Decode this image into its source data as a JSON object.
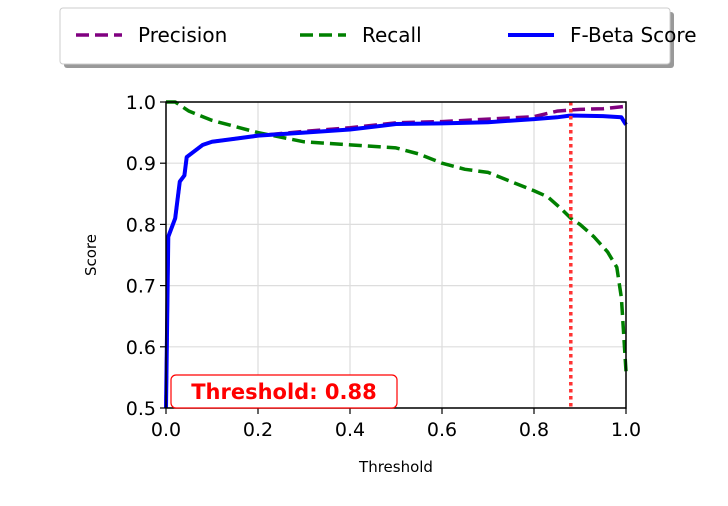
{
  "chart_data": {
    "type": "line",
    "title": "",
    "xlabel": "Threshold",
    "ylabel": "Score",
    "xlim": [
      0.0,
      1.0
    ],
    "ylim": [
      0.5,
      1.0
    ],
    "xticks": [
      "0.0",
      "0.2",
      "0.4",
      "0.6",
      "0.8",
      "1.0"
    ],
    "yticks": [
      "0.5",
      "0.6",
      "0.7",
      "0.8",
      "0.9",
      "1.0"
    ],
    "grid": true,
    "legend_position": "top-center",
    "annotation": "Threshold: 0.88",
    "threshold": 0.88,
    "series": [
      {
        "name": "Precision",
        "color": "#800080",
        "style": "dashed",
        "x": [
          0.0,
          0.005,
          0.02,
          0.03,
          0.04,
          0.045,
          0.08,
          0.1,
          0.15,
          0.2,
          0.3,
          0.4,
          0.5,
          0.6,
          0.7,
          0.8,
          0.85,
          0.88,
          0.9,
          0.95,
          1.0
        ],
        "y": [
          0.5,
          0.78,
          0.81,
          0.87,
          0.88,
          0.91,
          0.93,
          0.935,
          0.94,
          0.945,
          0.952,
          0.958,
          0.966,
          0.968,
          0.972,
          0.976,
          0.985,
          0.987,
          0.988,
          0.989,
          0.993
        ]
      },
      {
        "name": "Recall",
        "color": "#008000",
        "style": "dashed",
        "x": [
          0.0,
          0.02,
          0.05,
          0.1,
          0.2,
          0.3,
          0.4,
          0.5,
          0.55,
          0.6,
          0.65,
          0.7,
          0.75,
          0.8,
          0.83,
          0.86,
          0.88,
          0.9,
          0.93,
          0.96,
          0.98,
          0.99,
          1.0
        ],
        "y": [
          1.0,
          1.0,
          0.985,
          0.97,
          0.95,
          0.935,
          0.93,
          0.925,
          0.915,
          0.9,
          0.89,
          0.885,
          0.87,
          0.855,
          0.845,
          0.825,
          0.81,
          0.8,
          0.78,
          0.755,
          0.73,
          0.68,
          0.56
        ]
      },
      {
        "name": "F-Beta Score",
        "color": "#0000ff",
        "style": "solid",
        "x": [
          0.0,
          0.005,
          0.02,
          0.03,
          0.04,
          0.045,
          0.08,
          0.1,
          0.15,
          0.2,
          0.3,
          0.4,
          0.5,
          0.6,
          0.7,
          0.8,
          0.85,
          0.88,
          0.95,
          0.99,
          1.0
        ],
        "y": [
          0.5,
          0.78,
          0.81,
          0.87,
          0.88,
          0.91,
          0.93,
          0.935,
          0.94,
          0.945,
          0.95,
          0.955,
          0.964,
          0.965,
          0.967,
          0.972,
          0.975,
          0.978,
          0.977,
          0.975,
          0.963
        ]
      }
    ]
  }
}
